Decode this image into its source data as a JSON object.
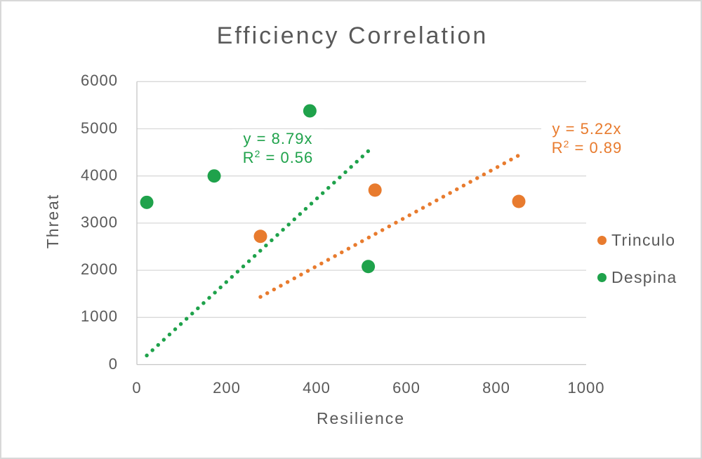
{
  "page": {
    "background": "#FFFFFF",
    "border_color": "#D8D8D8"
  },
  "chart_data": {
    "type": "scatter",
    "title": "Efficiency Correlation",
    "xlabel": "Resilience",
    "ylabel": "Threat",
    "xlim": [
      0,
      1000
    ],
    "ylim": [
      0,
      6000
    ],
    "xticks": [
      0,
      200,
      400,
      600,
      800,
      1000
    ],
    "yticks": [
      0,
      1000,
      2000,
      3000,
      4000,
      5000,
      6000
    ],
    "grid": "horizontal",
    "legend_position": "right",
    "text_color": "#595959",
    "gridline_color": "#D9D9D9",
    "axis_line_color": "#C6C6C6",
    "series": [
      {
        "name": "Trinculo",
        "color": "#E87B2E",
        "marker": "circle",
        "points": [
          {
            "x": 275,
            "y": 2720
          },
          {
            "x": 530,
            "y": 3700
          },
          {
            "x": 850,
            "y": 3460
          }
        ],
        "trendline": {
          "type": "linear",
          "slope": 5.22,
          "x_start": 275,
          "x_end": 850,
          "equation": "y = 5.22x",
          "r2_base": "R",
          "r2_sup": "2",
          "r2_rest": " = 0.89"
        }
      },
      {
        "name": "Despina",
        "color": "#1FA24B",
        "marker": "circle",
        "points": [
          {
            "x": 22,
            "y": 3440
          },
          {
            "x": 172,
            "y": 4000
          },
          {
            "x": 385,
            "y": 5380
          },
          {
            "x": 515,
            "y": 2080
          }
        ],
        "trendline": {
          "type": "linear",
          "slope": 8.79,
          "x_start": 22,
          "x_end": 515,
          "equation": "y = 8.79x",
          "r2_base": "R",
          "r2_sup": "2",
          "r2_rest": " = 0.56"
        }
      }
    ]
  }
}
